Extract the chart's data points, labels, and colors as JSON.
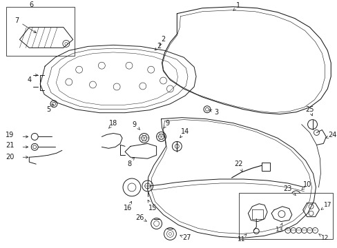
{
  "bg": "#ffffff",
  "lc": "#1a1a1a",
  "lw": 0.7,
  "fig_w": 4.89,
  "fig_h": 3.6,
  "dpi": 100,
  "label_fs": 7.0,
  "small_fs": 6.5
}
